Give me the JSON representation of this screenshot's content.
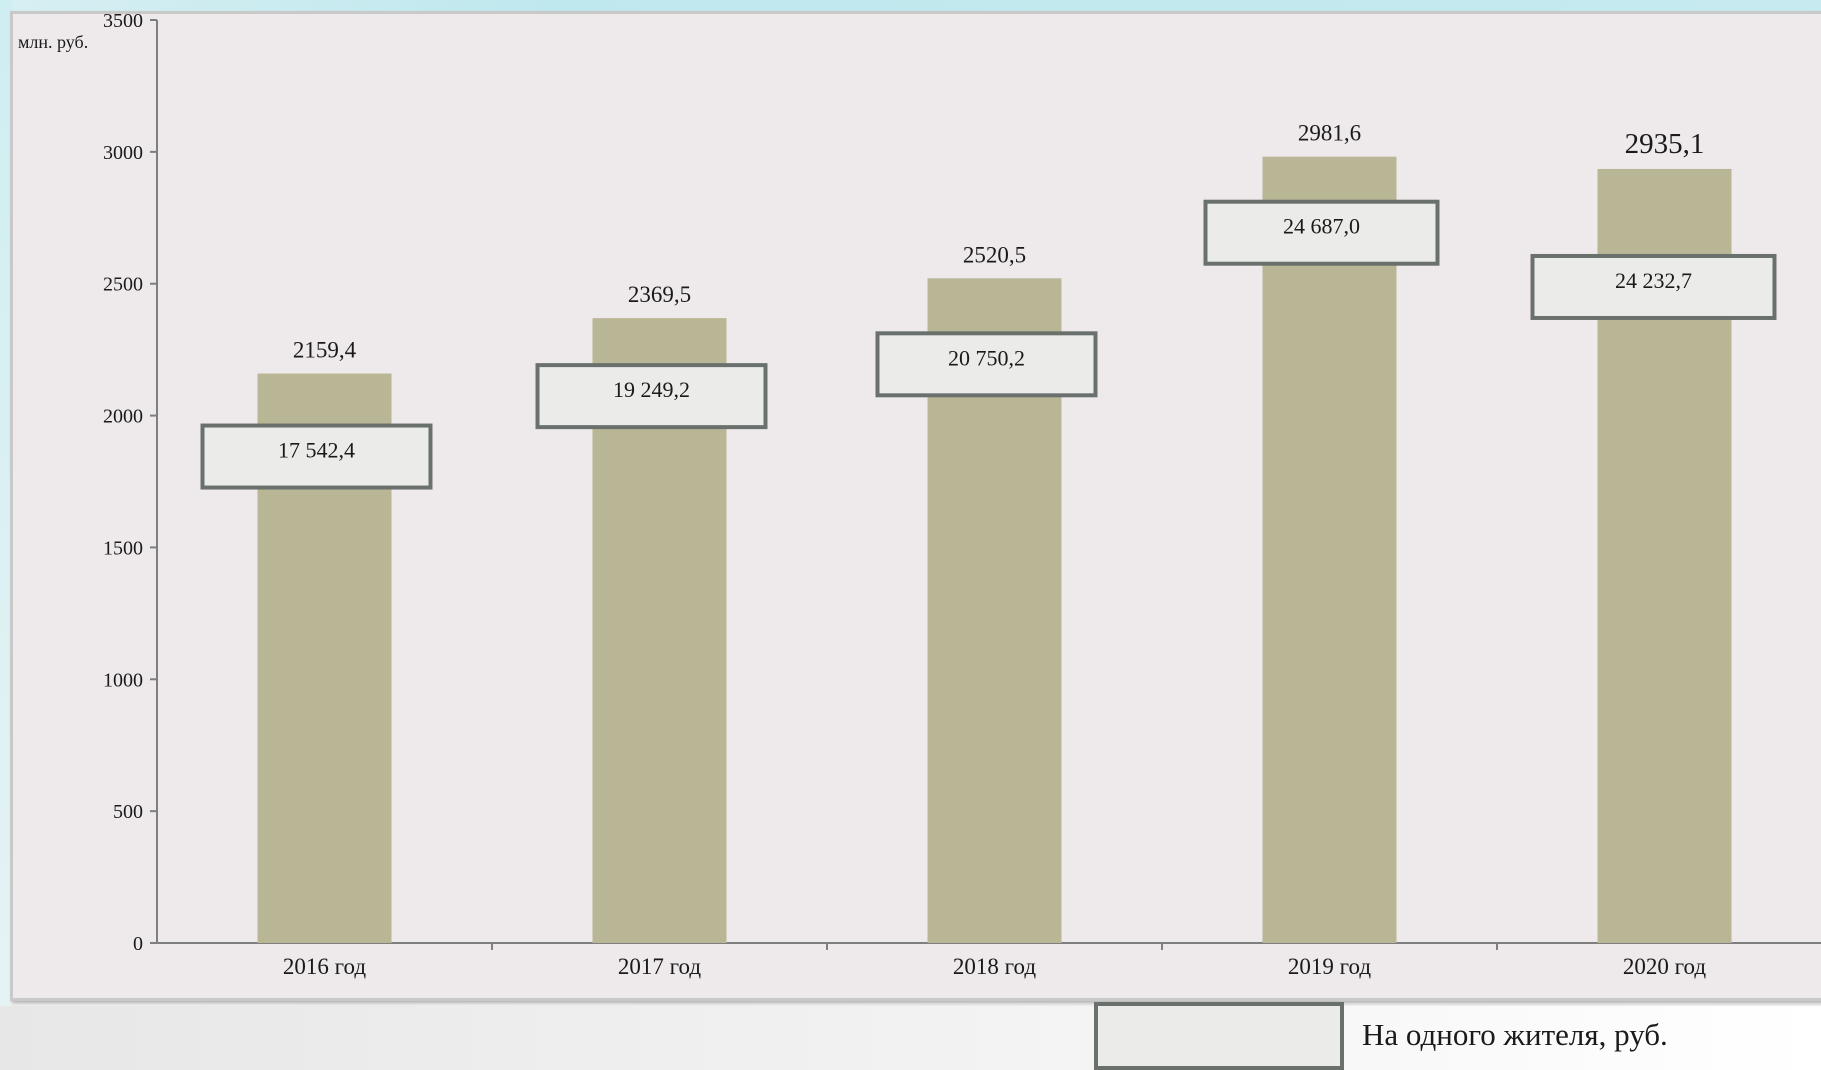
{
  "chart_data": {
    "type": "bar",
    "unit_label": "млн. руб.",
    "categories": [
      "2016 год",
      "2017 год",
      "2018 год",
      "2019 год",
      "2020 год"
    ],
    "values": [
      2159.4,
      2369.5,
      2520.5,
      2981.6,
      2935.1
    ],
    "value_labels": [
      "2159,4",
      "2369,5",
      "2520,5",
      "2981,6",
      "2935,1"
    ],
    "per_capita_labels": [
      "17 542,4",
      "19 249,2",
      "20 750,2",
      "24 687,0",
      "24 232,7"
    ],
    "legend": [
      "На одного жителя, руб."
    ],
    "yticks": [
      "0",
      "500",
      "1000",
      "1500",
      "2000",
      "2500",
      "3000",
      "3500"
    ],
    "ylim": [
      0,
      3500
    ],
    "grid": false,
    "colors": {
      "bar": "#b9b696",
      "plot_background": "#eee9ea",
      "callout_fill": "#ebebea",
      "callout_border": "#6a716d",
      "axis": "#7f7f7f"
    }
  }
}
